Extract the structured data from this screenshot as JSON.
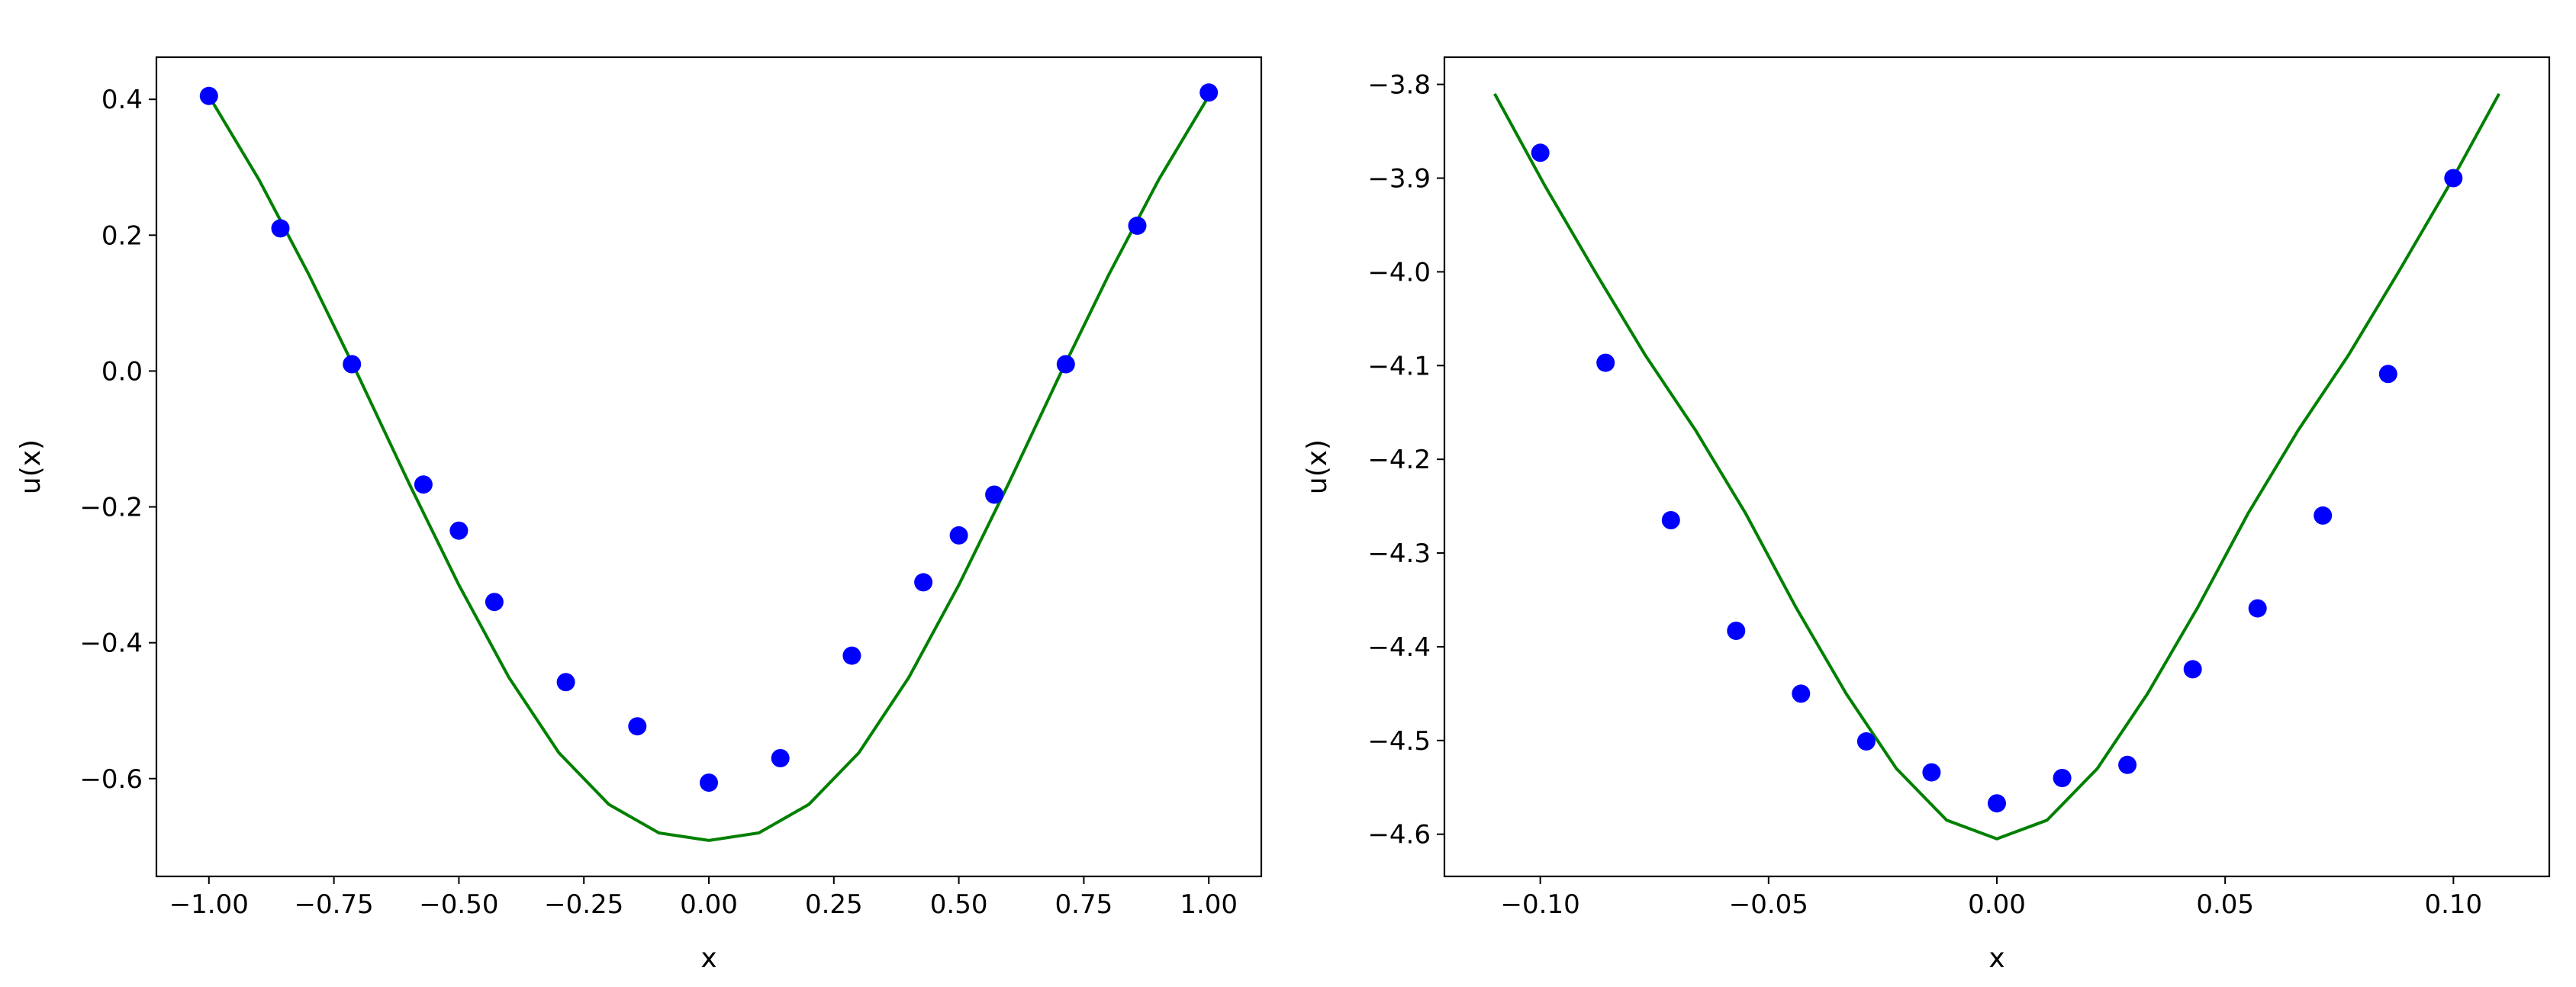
{
  "chart_data": [
    {
      "type": "scatter",
      "title": "",
      "xlabel": "x",
      "ylabel": "u(x)",
      "xlim": [
        -1.105,
        1.105
      ],
      "ylim": [
        -0.744,
        0.462
      ],
      "xticks": [
        "−1.00",
        "−0.75",
        "−0.50",
        "−0.25",
        "0.00",
        "0.25",
        "0.50",
        "0.75",
        "1.00"
      ],
      "xtick_values": [
        -1.0,
        -0.75,
        -0.5,
        -0.25,
        0.0,
        0.25,
        0.5,
        0.75,
        1.0
      ],
      "yticks": [
        "0.4",
        "0.2",
        "0.0",
        "−0.2",
        "−0.4",
        "−0.6"
      ],
      "ytick_values": [
        0.4,
        0.2,
        0.0,
        -0.2,
        -0.4,
        -0.6
      ],
      "grid": false,
      "series": [
        {
          "kind": "points",
          "color": "#0000ff",
          "x": [
            -1.0,
            -0.857,
            -0.714,
            -0.571,
            -0.5,
            -0.429,
            -0.286,
            -0.143,
            0.0,
            0.143,
            0.286,
            0.429,
            0.5,
            0.571,
            0.714,
            0.857,
            1.0
          ],
          "y": [
            0.405,
            0.21,
            0.01,
            -0.167,
            -0.235,
            -0.34,
            -0.458,
            -0.523,
            -0.606,
            -0.57,
            -0.419,
            -0.311,
            -0.242,
            -0.182,
            0.01,
            0.214,
            0.41
          ]
        },
        {
          "kind": "line",
          "color": "#008000",
          "x": [
            -1.0,
            -0.9,
            -0.8,
            -0.7,
            -0.6,
            -0.5,
            -0.4,
            -0.3,
            -0.2,
            -0.1,
            0.0,
            0.1,
            0.2,
            0.3,
            0.4,
            0.5,
            0.6,
            0.7,
            0.8,
            0.9,
            1.0
          ],
          "y": [
            0.405,
            0.282,
            0.142,
            -0.009,
            -0.165,
            -0.315,
            -0.451,
            -0.562,
            -0.638,
            -0.68,
            -0.691,
            -0.68,
            -0.638,
            -0.562,
            -0.451,
            -0.315,
            -0.165,
            -0.009,
            0.142,
            0.282,
            0.405
          ]
        }
      ]
    },
    {
      "type": "scatter",
      "title": "",
      "xlabel": "x",
      "ylabel": "u(x)",
      "xlim": [
        -0.121,
        0.121
      ],
      "ylim": [
        -4.645,
        -3.771
      ],
      "xticks": [
        "−0.10",
        "−0.05",
        "0.00",
        "0.05",
        "0.10"
      ],
      "xtick_values": [
        -0.1,
        -0.05,
        0.0,
        0.05,
        0.1
      ],
      "yticks": [
        "−3.8",
        "−3.9",
        "−4.0",
        "−4.1",
        "−4.2",
        "−4.3",
        "−4.4",
        "−4.5",
        "−4.6"
      ],
      "ytick_values": [
        -3.8,
        -3.9,
        -4.0,
        -4.1,
        -4.2,
        -4.3,
        -4.4,
        -4.5,
        -4.6
      ],
      "grid": false,
      "series": [
        {
          "kind": "points",
          "color": "#0000ff",
          "x": [
            -0.1,
            -0.0857,
            -0.0714,
            -0.0571,
            -0.0429,
            -0.0286,
            -0.0143,
            0.0,
            0.0143,
            0.0286,
            0.0429,
            0.0571,
            0.0714,
            0.0857,
            0.1
          ],
          "y": [
            -3.873,
            -4.097,
            -4.265,
            -4.383,
            -4.45,
            -4.501,
            -4.534,
            -4.567,
            -4.54,
            -4.526,
            -4.424,
            -4.359,
            -4.26,
            -4.109,
            -3.9
          ]
        },
        {
          "kind": "line",
          "color": "#008000",
          "x": [
            -0.11,
            -0.099,
            -0.088,
            -0.077,
            -0.066,
            -0.055,
            -0.044,
            -0.033,
            -0.022,
            -0.011,
            0.0,
            0.011,
            0.022,
            0.033,
            0.044,
            0.055,
            0.066,
            0.077,
            0.088,
            0.099,
            0.11
          ],
          "y": [
            -3.81,
            -3.908,
            -4.0,
            -4.089,
            -4.169,
            -4.258,
            -4.358,
            -4.45,
            -4.53,
            -4.585,
            -4.605,
            -4.585,
            -4.53,
            -4.45,
            -4.358,
            -4.258,
            -4.169,
            -4.089,
            -4.0,
            -3.908,
            -3.81
          ]
        }
      ]
    }
  ]
}
